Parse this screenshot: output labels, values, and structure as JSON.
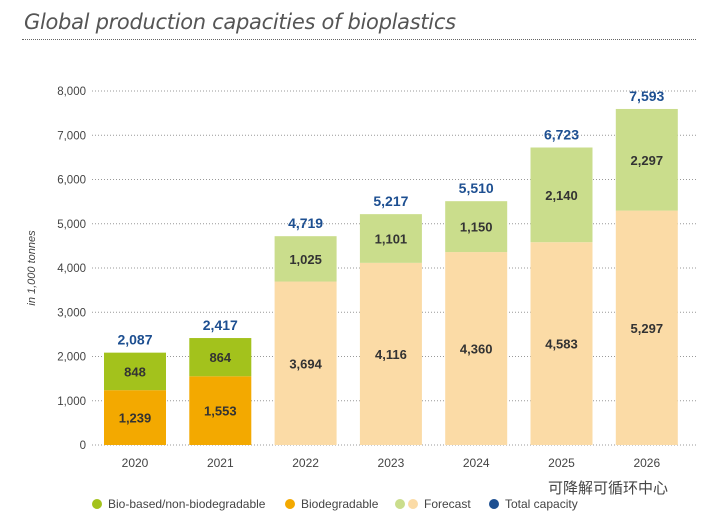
{
  "chart_data": {
    "type": "bar",
    "stacked": true,
    "title": "Global production capacities of bioplastics",
    "ylabel": "in 1,000 tonnes",
    "xlabel": "",
    "ylim": [
      0,
      8000
    ],
    "yticks": [
      "0",
      "1,000",
      "2,000",
      "3,000",
      "4,000",
      "5,000",
      "6,000",
      "7,000",
      "8,000"
    ],
    "grid": true,
    "legend_position": "bottom",
    "categories": [
      "2020",
      "2021",
      "2022",
      "2023",
      "2024",
      "2025",
      "2026"
    ],
    "forecast_from": "2022",
    "series": [
      {
        "name": "Biodegradable",
        "values": [
          1239,
          1553,
          3694,
          4116,
          4360,
          4583,
          5297
        ],
        "labels": [
          "1,239",
          "1,553",
          "3,694",
          "4,116",
          "4,360",
          "4,583",
          "5,297"
        ]
      },
      {
        "name": "Bio-based/non-biodegradable",
        "values": [
          848,
          864,
          1025,
          1101,
          1150,
          2140,
          2297
        ],
        "labels": [
          "848",
          "864",
          "1,025",
          "1,101",
          "1,150",
          "2,140",
          "2,297"
        ]
      }
    ],
    "totals": {
      "name": "Total capacity",
      "values": [
        2087,
        2417,
        4719,
        5217,
        5510,
        6723,
        7593
      ],
      "labels": [
        "2,087",
        "2,417",
        "4,719",
        "5,217",
        "5,510",
        "6,723",
        "7,593"
      ]
    },
    "legend": [
      "Bio-based/non-biodegradable",
      "Biodegradable",
      "Forecast",
      "Total capacity"
    ],
    "colors": {
      "biobased": "#a3c21c",
      "biodegradable": "#f3a900",
      "forecast_biobased": "#cadd8c",
      "forecast_biodegradable": "#fbdba6",
      "total": "#1d4f91"
    }
  },
  "watermark": "可降解可循环中心"
}
